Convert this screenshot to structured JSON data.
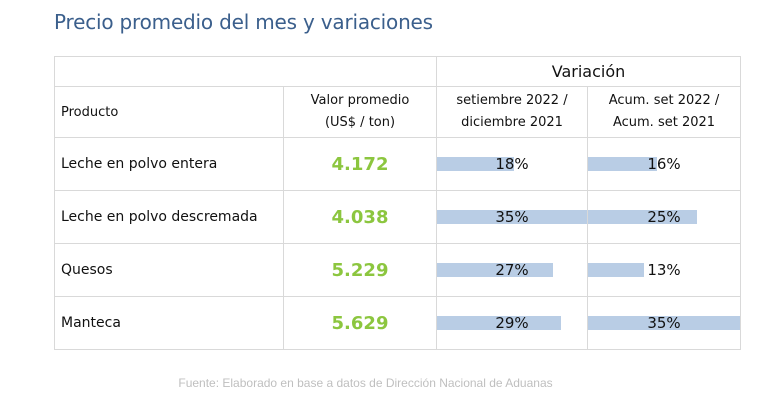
{
  "title": "Precio promedio del mes y variaciones",
  "table": {
    "variacion_label": "Variación",
    "col_producto": "Producto",
    "col_valor_line1": "Valor promedio",
    "col_valor_line2": "(US$ / ton)",
    "col_var1_line1": "setiembre 2022 /",
    "col_var1_line2": "diciembre 2021",
    "col_var2_line1": "Acum. set 2022 /",
    "col_var2_line2": "Acum. set 2021",
    "rows": [
      {
        "producto": "Leche en polvo entera",
        "valor": "4.172",
        "var1": "18%",
        "var1_value": 18,
        "var2": "16%",
        "var2_value": 16
      },
      {
        "producto": "Leche en polvo descremada",
        "valor": "4.038",
        "var1": "35%",
        "var1_value": 35,
        "var2": "25%",
        "var2_value": 25
      },
      {
        "producto": "Quesos",
        "valor": "5.229",
        "var1": "27%",
        "var1_value": 27,
        "var2": "13%",
        "var2_value": 13
      },
      {
        "producto": "Manteca",
        "valor": "5.629",
        "var1": "29%",
        "var1_value": 29,
        "var2": "35%",
        "var2_value": 35
      }
    ]
  },
  "source": "Fuente: Elaborado en base a datos de Dirección Nacional de Aduanas",
  "colors": {
    "title": "#3b5f8c",
    "value": "#8cc63f",
    "bar": "#b9cde5",
    "source": "#bfbfbf"
  }
}
